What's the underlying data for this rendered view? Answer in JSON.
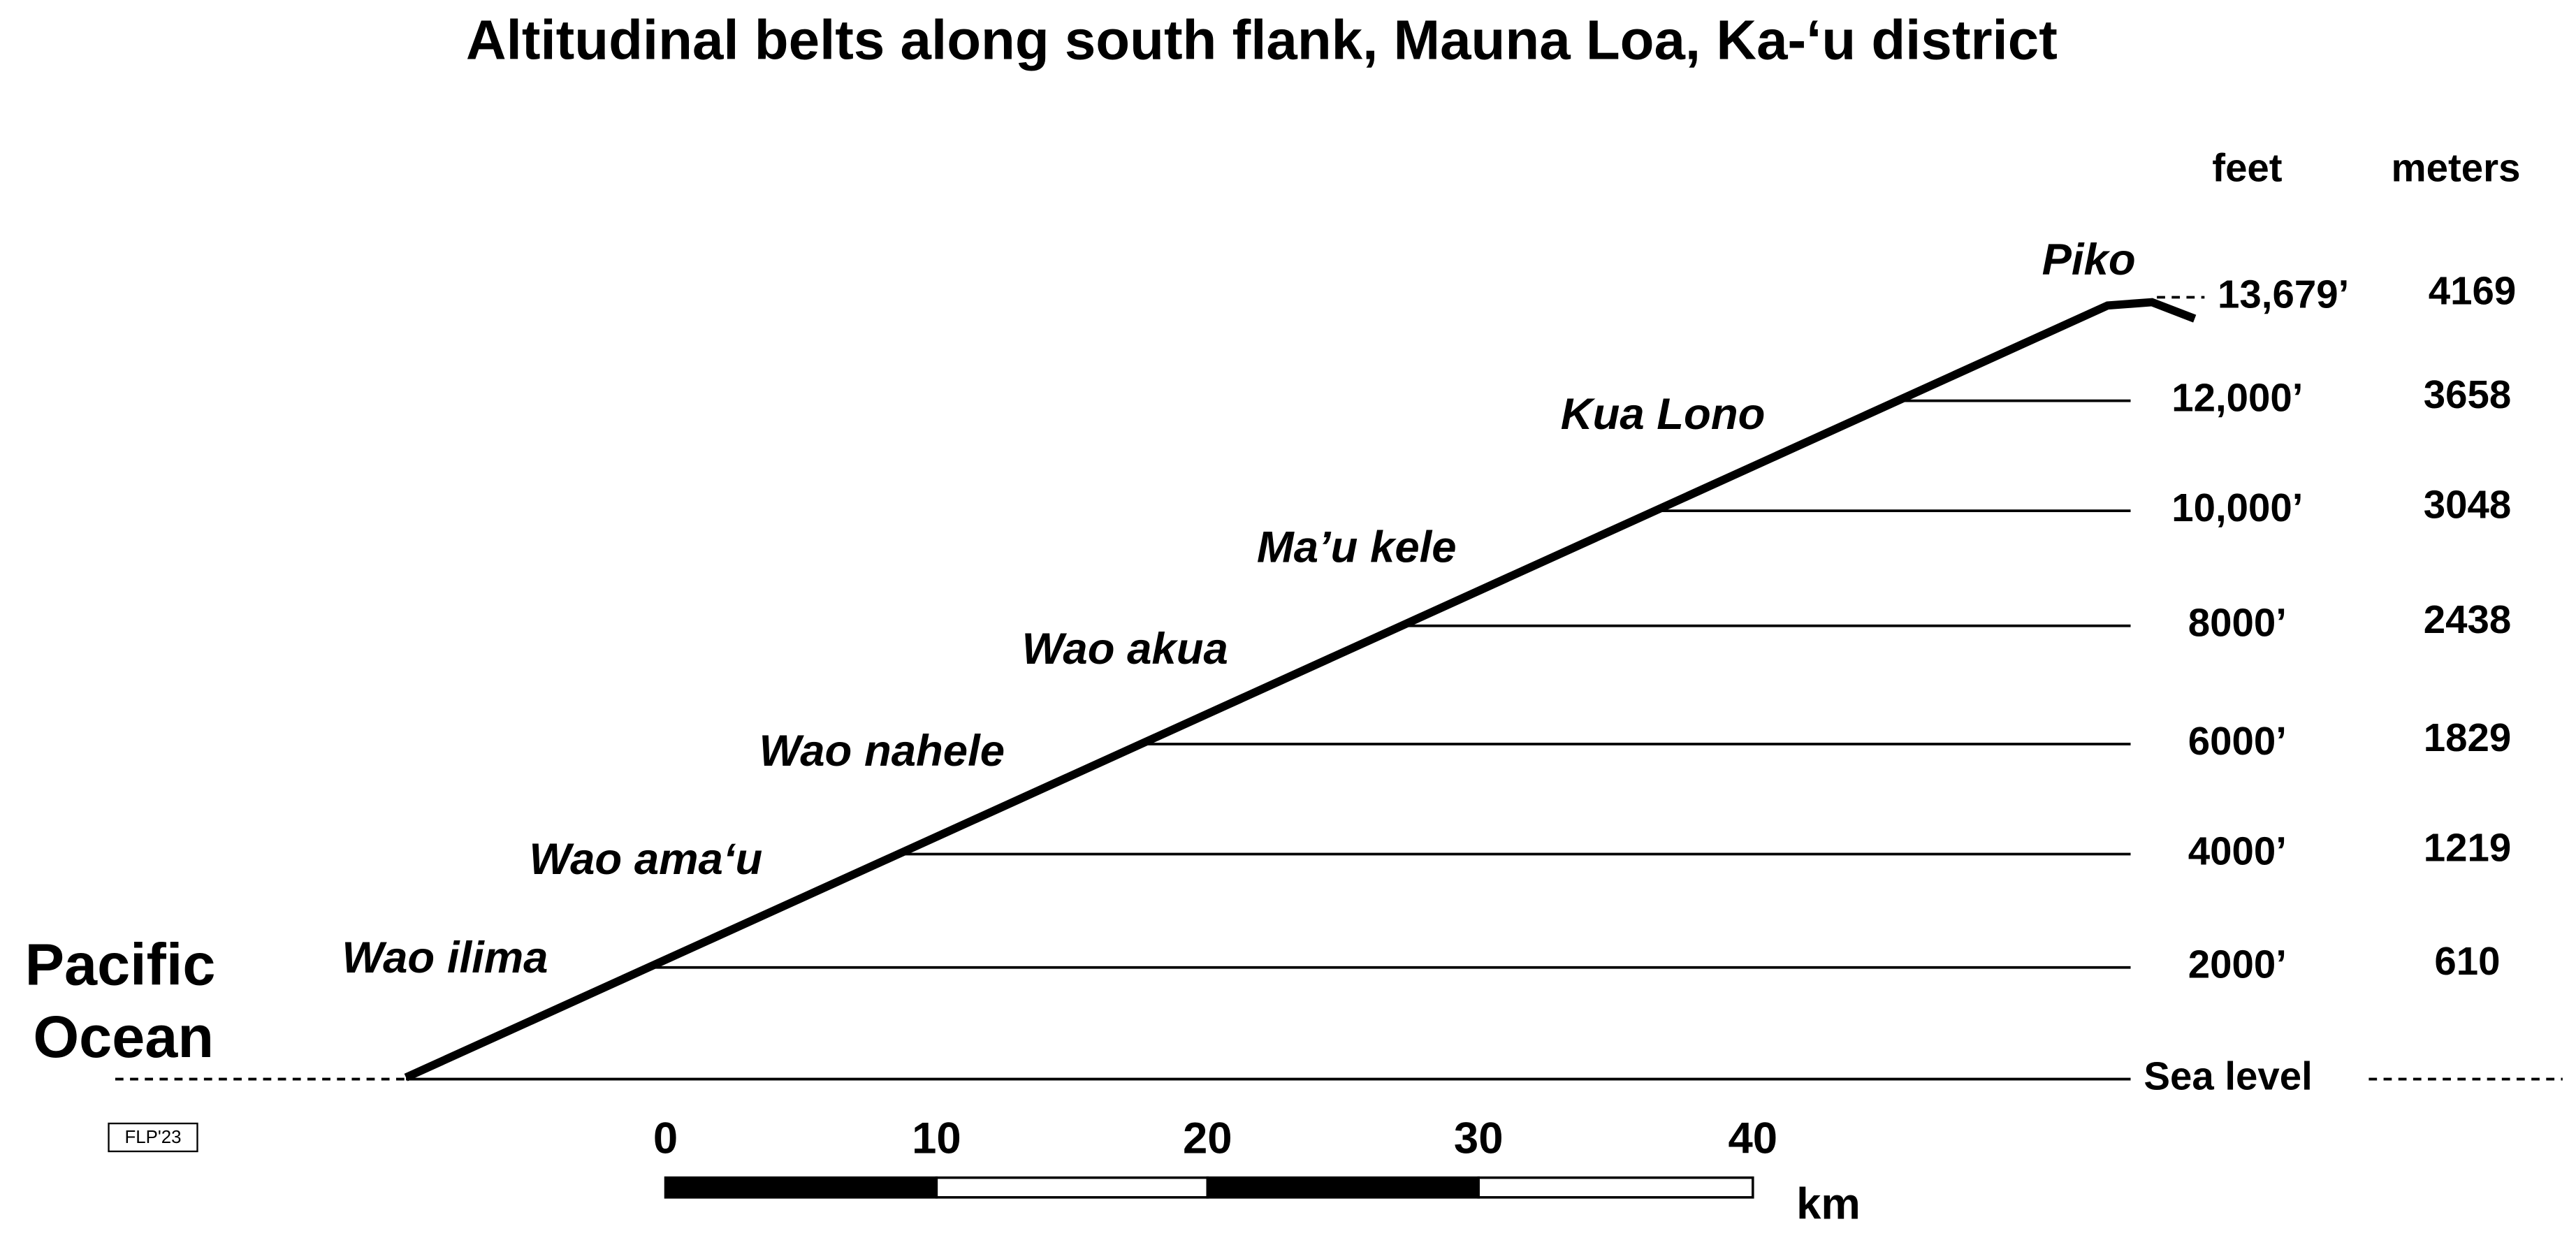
{
  "title": "Altitudinal belts along south flank, Mauna Loa, Ka-‘u district",
  "headers": {
    "feet": "feet",
    "meters": "meters"
  },
  "summit": {
    "name": "Piko",
    "feet": "13,679’",
    "meters": 4169
  },
  "levels": [
    {
      "feet": "12,000’",
      "meters": 3658
    },
    {
      "feet": "10,000’",
      "meters": 3048
    },
    {
      "feet": "8000’",
      "meters": 2438
    },
    {
      "feet": "6000’",
      "meters": 1829
    },
    {
      "feet": "4000’",
      "meters": 1219
    },
    {
      "feet": "2000’",
      "meters": 610
    }
  ],
  "belts": [
    "Kua Lono",
    "Ma’u kele",
    "Wao akua",
    "Wao nahele",
    "Wao ama‘u",
    "Wao ilima"
  ],
  "ocean": [
    "Pacific",
    "Ocean"
  ],
  "sea_level": "Sea level",
  "scale": {
    "ticks": [
      0,
      10,
      20,
      30,
      40
    ],
    "unit": "km"
  },
  "signature": "FLP'23"
}
